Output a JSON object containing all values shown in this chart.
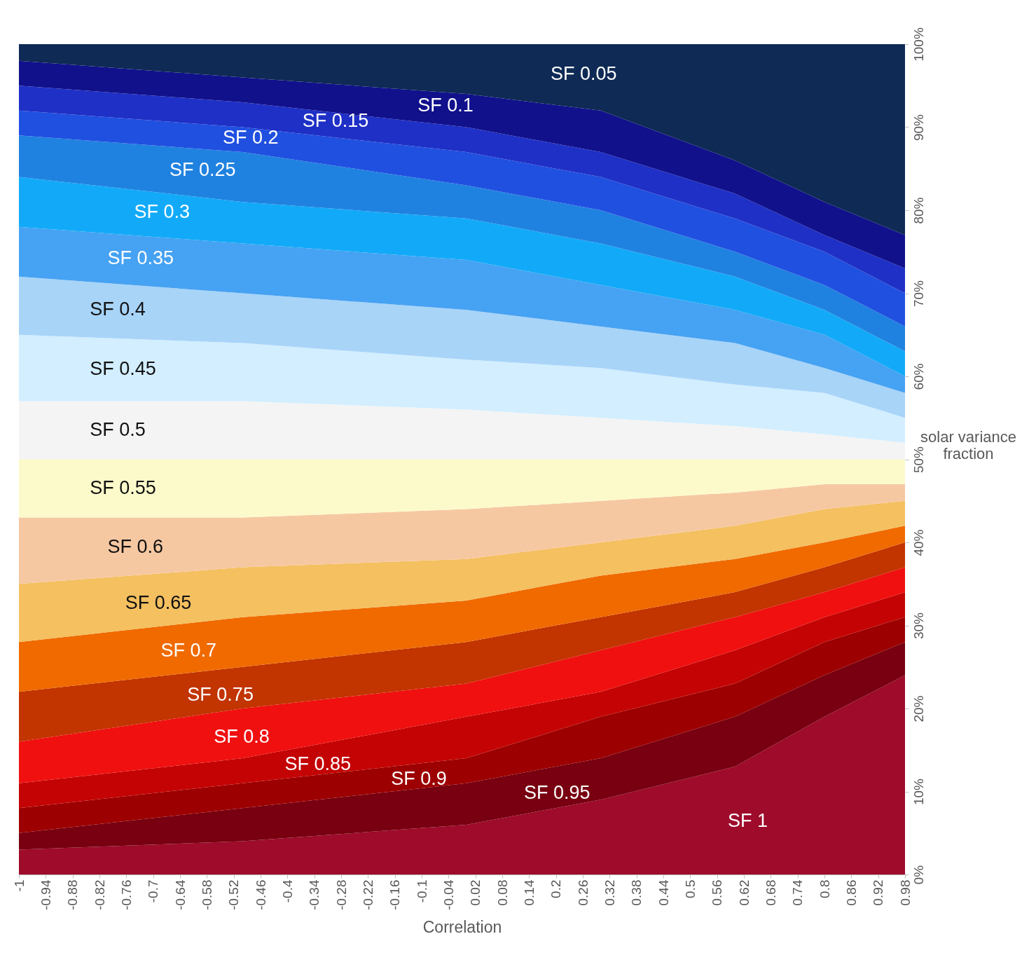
{
  "chart_data": {
    "type": "area",
    "stacked": true,
    "xlabel": "Correlation",
    "ylabel": "solar variance fraction",
    "x": [
      -1,
      -0.5,
      0,
      0.3,
      0.6,
      0.8,
      0.98
    ],
    "xlim": [
      -1,
      0.98
    ],
    "xticks": [
      -1,
      -0.94,
      -0.88,
      -0.82,
      -0.76,
      -0.7,
      -0.64,
      -0.58,
      -0.52,
      -0.46,
      -0.4,
      -0.34,
      -0.28,
      -0.22,
      -0.16,
      -0.1,
      -0.04,
      0.02,
      0.08,
      0.14,
      0.2,
      0.26,
      0.32,
      0.38,
      0.44,
      0.5,
      0.56,
      0.62,
      0.68,
      0.74,
      0.8,
      0.86,
      0.92,
      0.98
    ],
    "ylim": [
      0,
      100
    ],
    "yticks": [
      {
        "value": 0,
        "label": "0%"
      },
      {
        "value": 10,
        "label": "10%"
      },
      {
        "value": 20,
        "label": "20%"
      },
      {
        "value": 30,
        "label": "30%"
      },
      {
        "value": 40,
        "label": "40%"
      },
      {
        "value": 50,
        "label": "50%"
      },
      {
        "value": 60,
        "label": "60%"
      },
      {
        "value": 70,
        "label": "70%"
      },
      {
        "value": 80,
        "label": "80%"
      },
      {
        "value": 90,
        "label": "90%"
      },
      {
        "value": 100,
        "label": "100%"
      }
    ],
    "grid": false,
    "legend": false,
    "series": [
      {
        "name": "SF 1",
        "color": "#9e0b2b",
        "values": [
          3,
          4,
          6,
          9,
          13,
          19,
          24
        ]
      },
      {
        "name": "SF 0.95",
        "color": "#780010",
        "values": [
          2,
          4,
          5,
          5,
          6,
          5,
          4
        ]
      },
      {
        "name": "SF 0.9",
        "color": "#9c0000",
        "values": [
          3,
          3,
          3,
          5,
          4,
          4,
          3
        ]
      },
      {
        "name": "SF 0.85",
        "color": "#c40404",
        "values": [
          3,
          3,
          5,
          3,
          4,
          3,
          3
        ]
      },
      {
        "name": "SF 0.8",
        "color": "#f01010",
        "values": [
          5,
          6,
          4,
          5,
          4,
          3,
          3
        ]
      },
      {
        "name": "SF 0.75",
        "color": "#c23400",
        "values": [
          6,
          5,
          5,
          4,
          3,
          3,
          3
        ]
      },
      {
        "name": "SF 0.7",
        "color": "#f06a00",
        "values": [
          6,
          6,
          5,
          5,
          4,
          3,
          2
        ]
      },
      {
        "name": "SF 0.65",
        "color": "#f4c060",
        "values": [
          7,
          6,
          5,
          4,
          4,
          4,
          3
        ]
      },
      {
        "name": "SF 0.6",
        "color": "#f6c8a2",
        "values": [
          8,
          6,
          6,
          5,
          4,
          3,
          2
        ]
      },
      {
        "name": "SF 0.55",
        "color": "#fcfacb",
        "values": [
          7,
          7,
          6,
          5,
          4,
          3,
          3
        ]
      },
      {
        "name": "SF 0.5",
        "color": "#f4f4f4",
        "values": [
          7,
          7,
          6,
          5,
          4,
          3,
          2
        ]
      },
      {
        "name": "SF 0.45",
        "color": "#d2eeff",
        "values": [
          8,
          7,
          6,
          6,
          5,
          5,
          3
        ]
      },
      {
        "name": "SF 0.4",
        "color": "#a8d4f8",
        "values": [
          7,
          6,
          6,
          5,
          5,
          3,
          3
        ]
      },
      {
        "name": "SF 0.35",
        "color": "#46a2f2",
        "values": [
          6,
          6,
          6,
          5,
          4,
          4,
          2
        ]
      },
      {
        "name": "SF 0.3",
        "color": "#12aaf8",
        "values": [
          6,
          5,
          5,
          5,
          4,
          3,
          3
        ]
      },
      {
        "name": "SF 0.25",
        "color": "#2082e0",
        "values": [
          5,
          6,
          4,
          4,
          3,
          3,
          3
        ]
      },
      {
        "name": "SF 0.2",
        "color": "#2050e0",
        "values": [
          3,
          3,
          4,
          4,
          4,
          4,
          4
        ]
      },
      {
        "name": "SF 0.15",
        "color": "#1f30c6",
        "values": [
          3,
          3,
          3,
          3,
          3,
          2,
          3
        ]
      },
      {
        "name": "SF 0.1",
        "color": "#11118c",
        "values": [
          3,
          3,
          4,
          5,
          4,
          4,
          4
        ]
      },
      {
        "name": "SF 0.05",
        "color": "#0e2a55",
        "values": [
          2,
          4,
          6,
          8,
          14,
          19,
          23
        ]
      }
    ]
  }
}
